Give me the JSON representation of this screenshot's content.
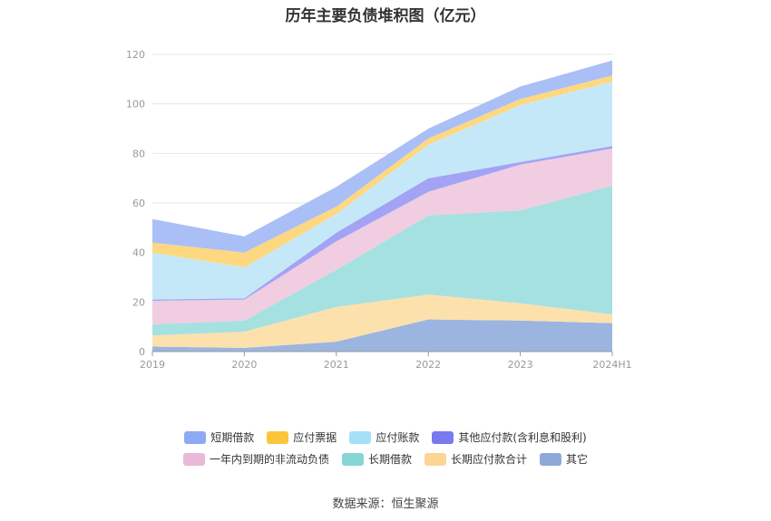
{
  "chart_data": {
    "type": "area",
    "title": "历年主要负债堆积图（亿元）",
    "categories": [
      "2019",
      "2020",
      "2021",
      "2022",
      "2023",
      "2024H1"
    ],
    "ylim": [
      0,
      120
    ],
    "yticks": [
      0,
      20,
      40,
      60,
      80,
      100,
      120
    ],
    "grid": true,
    "legend_position": "bottom",
    "stacked": true,
    "series": [
      {
        "name": "其它",
        "color": "#9bb5e0",
        "values": [
          2,
          1.5,
          4,
          13,
          12.5,
          11.5
        ]
      },
      {
        "name": "长期应付款合计",
        "color": "#fde1ac",
        "values": [
          4.5,
          6.5,
          14,
          10,
          7,
          3.5
        ]
      },
      {
        "name": "长期借款",
        "color": "#a6e1e1",
        "values": [
          4.5,
          4.5,
          15,
          32,
          37.5,
          52
        ]
      },
      {
        "name": "一年内到期的非流动负债",
        "color": "#f1cde2",
        "values": [
          9.5,
          8.5,
          11.5,
          9.5,
          18.5,
          15
        ]
      },
      {
        "name": "其他应付款(含利息和股利)",
        "color": "#a3a3f5",
        "values": [
          0.5,
          0.5,
          3.5,
          5.5,
          1,
          1
        ]
      },
      {
        "name": "应付账款",
        "color": "#c5e8f9",
        "values": [
          19,
          12.5,
          7.5,
          13.5,
          23,
          26
        ]
      },
      {
        "name": "应付票据",
        "color": "#fed880",
        "values": [
          4,
          6,
          3,
          2.5,
          2.5,
          2.5
        ]
      },
      {
        "name": "短期借款",
        "color": "#aabff6",
        "values": [
          9.5,
          6.5,
          8,
          4,
          5,
          6
        ]
      }
    ]
  },
  "legend": {
    "row1": [
      {
        "label": "短期借款",
        "color": "#8ea9f5"
      },
      {
        "label": "应付票据",
        "color": "#fbc53c"
      },
      {
        "label": "应付账款",
        "color": "#a5dff8"
      },
      {
        "label": "其他应付款(含利息和股利)",
        "color": "#7a7af0"
      }
    ],
    "row2": [
      {
        "label": "一年内到期的非流动负债",
        "color": "#e9b9d8"
      },
      {
        "label": "长期借款",
        "color": "#86d6d6"
      },
      {
        "label": "长期应付款合计",
        "color": "#fdd593"
      },
      {
        "label": "其它",
        "color": "#8ea9d8"
      }
    ]
  },
  "source": "数据来源：恒生聚源"
}
